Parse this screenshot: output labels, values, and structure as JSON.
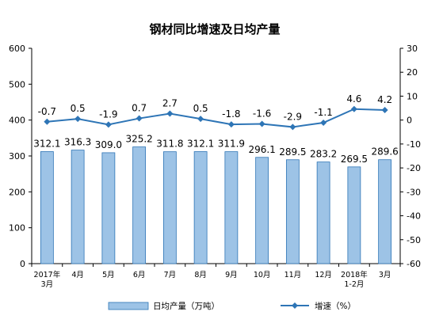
{
  "chart_data": {
    "type": "bar",
    "title": "钢材同比增速及日均产量",
    "categories": [
      [
        "2017年",
        "3月"
      ],
      [
        "4月"
      ],
      [
        "5月"
      ],
      [
        "6月"
      ],
      [
        "7月"
      ],
      [
        "8月"
      ],
      [
        "9月"
      ],
      [
        "10月"
      ],
      [
        "11月"
      ],
      [
        "12月"
      ],
      [
        "2018年",
        "1-2月"
      ],
      [
        "3月"
      ]
    ],
    "series": [
      {
        "name": "日均产量（万吨）",
        "type": "bar",
        "axis": "left",
        "color": "#9dc3e6",
        "values": [
          312.1,
          316.3,
          309.0,
          325.2,
          311.8,
          312.1,
          311.9,
          296.1,
          289.5,
          283.2,
          269.5,
          289.6
        ],
        "labels": [
          "312.1",
          "316.3",
          "309.0",
          "325.2",
          "311.8",
          "312.1",
          "311.9",
          "296.1",
          "289.5",
          "283.2",
          "269.5",
          "289.6"
        ]
      },
      {
        "name": "增速（%）",
        "type": "line",
        "axis": "right",
        "color": "#2e75b6",
        "values": [
          -0.7,
          0.5,
          -1.9,
          0.7,
          2.7,
          0.5,
          -1.8,
          -1.6,
          -2.9,
          -1.1,
          4.6,
          4.2
        ],
        "labels": [
          "-0.7",
          "0.5",
          "-1.9",
          "0.7",
          "2.7",
          "0.5",
          "-1.8",
          "-1.6",
          "-2.9",
          "-1.1",
          "4.6",
          "4.2"
        ]
      }
    ],
    "y_left": {
      "min": 0,
      "max": 600,
      "step": 100,
      "ticks": [
        "0",
        "100",
        "200",
        "300",
        "400",
        "500",
        "600"
      ]
    },
    "y_right": {
      "min": -60,
      "max": 30,
      "step": 10,
      "ticks": [
        "-60",
        "-50",
        "-40",
        "-30",
        "-20",
        "-10",
        "0",
        "10",
        "20",
        "30"
      ]
    },
    "grid": false,
    "legend_position": "bottom"
  }
}
